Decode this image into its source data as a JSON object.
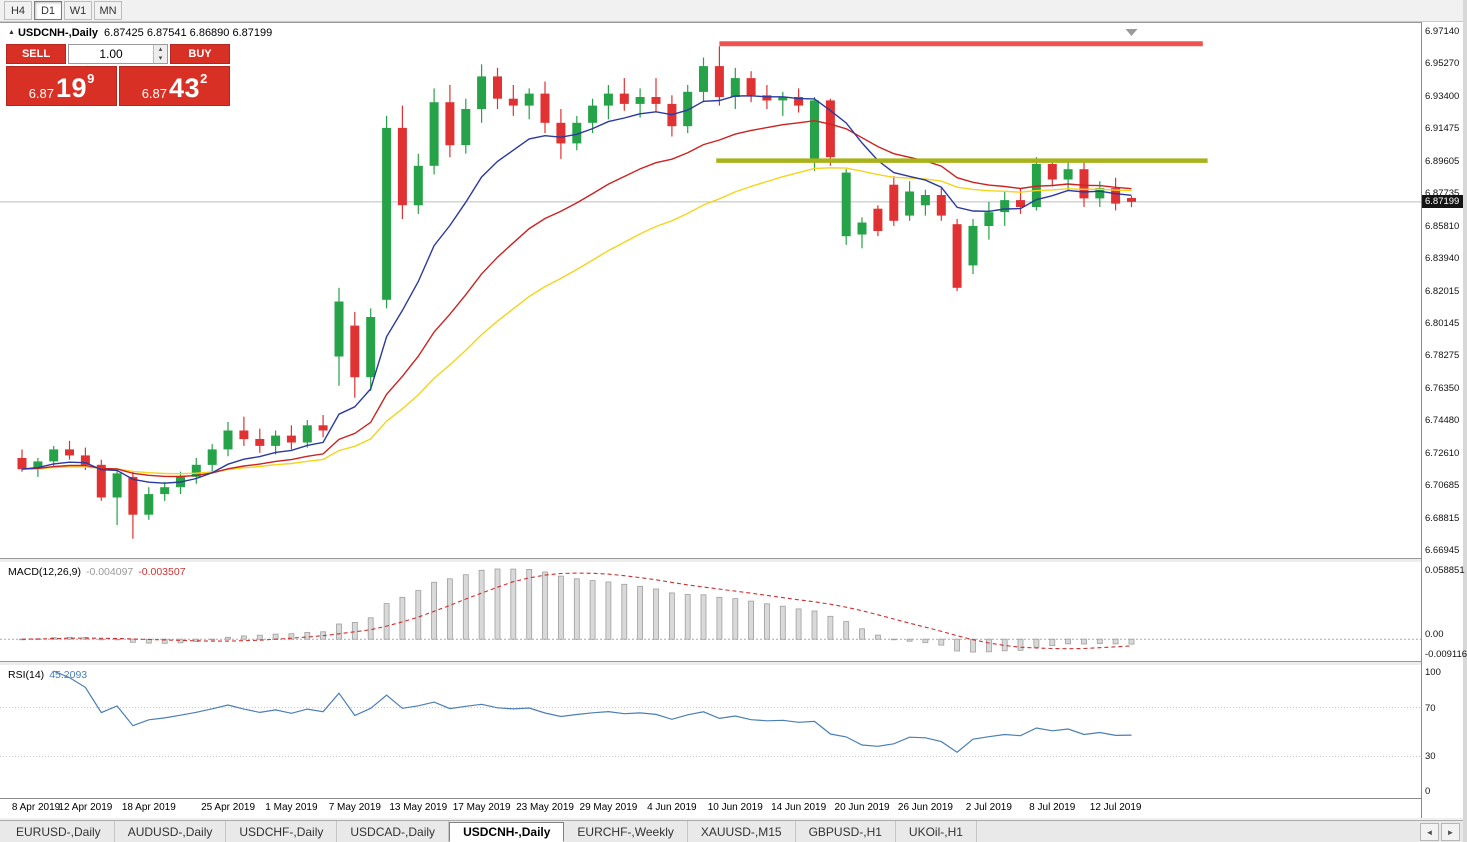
{
  "toolbar": {
    "timeframes": [
      "H4",
      "D1",
      "W1",
      "MN"
    ],
    "active": "D1"
  },
  "icons": {
    "expand_marker": "▲",
    "volume_up": "▴",
    "volume_down": "▾",
    "tab_scroll_left": "◄",
    "tab_scroll_right": "►"
  },
  "chart": {
    "symbol_label": "USDCNH-,Daily",
    "ohlc_text": "6.87425 6.87541 6.86890 6.87199"
  },
  "trade_panel": {
    "sell_label": "SELL",
    "buy_label": "BUY",
    "volume": "1.00",
    "sell_price_main": "6.87",
    "sell_price_big": "19",
    "sell_price_sup": "9",
    "buy_price_main": "6.87",
    "buy_price_big": "43",
    "buy_price_sup": "2"
  },
  "price_scale": {
    "labels": [
      "6.97140",
      "6.95270",
      "6.93400",
      "6.91475",
      "6.89605",
      "6.87735",
      "6.85810",
      "6.83940",
      "6.82015",
      "6.80145",
      "6.78275",
      "6.76350",
      "6.74480",
      "6.72610",
      "6.70685",
      "6.68815",
      "6.66945"
    ],
    "current": "6.87199"
  },
  "macd_panel": {
    "label": "MACD(12,26,9)",
    "value_macd": "-0.004097",
    "value_signal": "-0.003507",
    "scale_top": "0.058851",
    "scale_zero": "0.00",
    "scale_bottom": "-0.009116"
  },
  "rsi_panel": {
    "label": "RSI(14)",
    "value": "45.2093",
    "scale_labels": [
      "100",
      "70",
      "30",
      "0"
    ],
    "scale_values": [
      100,
      70,
      30,
      0
    ],
    "levels": [
      70,
      30
    ]
  },
  "tabs": {
    "items": [
      "EURUSD-,Daily",
      "AUDUSD-,Daily",
      "USDCHF-,Daily",
      "USDCAD-,Daily",
      "USDCNH-,Daily",
      "EURCHF-,Weekly",
      "XAUUSD-,M15",
      "GBPUSD-,H1",
      "UKOil-,H1"
    ],
    "active_index": 4
  },
  "chart_data": [
    {
      "type": "candlestick",
      "symbol": "USDCNH",
      "timeframe": "Daily",
      "ylim": [
        6.66945,
        6.9714
      ],
      "current_price": 6.87199,
      "colors": {
        "up": "#26a248",
        "down": "#e03232",
        "current_price_line": "#bdbdbd"
      },
      "candles": [
        [
          6.723,
          6.728,
          6.715,
          6.7165
        ],
        [
          6.7165,
          6.723,
          6.712,
          6.721
        ],
        [
          6.721,
          6.73,
          6.718,
          6.728
        ],
        [
          6.728,
          6.733,
          6.722,
          6.7245
        ],
        [
          6.7245,
          6.729,
          6.716,
          6.719
        ],
        [
          6.719,
          6.722,
          6.698,
          6.7
        ],
        [
          6.7,
          6.716,
          6.684,
          6.714
        ],
        [
          6.712,
          6.715,
          6.676,
          6.69
        ],
        [
          6.69,
          6.706,
          6.687,
          6.702
        ],
        [
          6.702,
          6.709,
          6.698,
          6.706
        ],
        [
          6.706,
          6.715,
          6.702,
          6.712
        ],
        [
          6.712,
          6.723,
          6.708,
          6.719
        ],
        [
          6.719,
          6.731,
          6.715,
          6.728
        ],
        [
          6.728,
          6.744,
          6.724,
          6.739
        ],
        [
          6.739,
          6.747,
          6.73,
          6.734
        ],
        [
          6.734,
          6.74,
          6.726,
          6.73
        ],
        [
          6.73,
          6.739,
          6.725,
          6.736
        ],
        [
          6.736,
          6.742,
          6.728,
          6.732
        ],
        [
          6.732,
          6.745,
          6.729,
          6.742
        ],
        [
          6.742,
          6.748,
          6.735,
          6.739
        ],
        [
          6.782,
          6.822,
          6.765,
          6.814
        ],
        [
          6.8,
          6.808,
          6.758,
          6.77
        ],
        [
          6.77,
          6.81,
          6.762,
          6.805
        ],
        [
          6.815,
          6.922,
          6.81,
          6.915
        ],
        [
          6.915,
          6.928,
          6.862,
          6.87
        ],
        [
          6.87,
          6.9,
          6.865,
          6.893
        ],
        [
          6.893,
          6.938,
          6.888,
          6.93
        ],
        [
          6.93,
          6.94,
          6.898,
          6.905
        ],
        [
          6.905,
          6.932,
          6.9,
          6.926
        ],
        [
          6.926,
          6.952,
          6.918,
          6.945
        ],
        [
          6.945,
          6.95,
          6.926,
          6.932
        ],
        [
          6.932,
          6.94,
          6.922,
          6.928
        ],
        [
          6.928,
          6.938,
          6.92,
          6.935
        ],
        [
          6.935,
          6.942,
          6.912,
          6.918
        ],
        [
          6.918,
          6.926,
          6.897,
          6.906
        ],
        [
          6.906,
          6.922,
          6.902,
          6.918
        ],
        [
          6.918,
          6.932,
          6.912,
          6.928
        ],
        [
          6.928,
          6.94,
          6.92,
          6.935
        ],
        [
          6.935,
          6.944,
          6.925,
          6.929
        ],
        [
          6.929,
          6.938,
          6.921,
          6.933
        ],
        [
          6.933,
          6.944,
          6.924,
          6.929
        ],
        [
          6.929,
          6.934,
          6.91,
          6.916
        ],
        [
          6.916,
          6.94,
          6.912,
          6.936
        ],
        [
          6.936,
          6.956,
          6.93,
          6.951
        ],
        [
          6.951,
          6.9625,
          6.928,
          6.933
        ],
        [
          6.933,
          6.95,
          6.926,
          6.944
        ],
        [
          6.944,
          6.948,
          6.93,
          6.934
        ],
        [
          6.934,
          6.94,
          6.926,
          6.931
        ],
        [
          6.931,
          6.936,
          6.922,
          6.933
        ],
        [
          6.933,
          6.938,
          6.924,
          6.928
        ],
        [
          6.896,
          6.933,
          6.89,
          6.931
        ],
        [
          6.931,
          6.932,
          6.893,
          6.898
        ],
        [
          6.852,
          6.891,
          6.847,
          6.889
        ],
        [
          6.853,
          6.863,
          6.845,
          6.86
        ],
        [
          6.868,
          6.87,
          6.852,
          6.855
        ],
        [
          6.882,
          6.887,
          6.858,
          6.861
        ],
        [
          6.864,
          6.884,
          6.861,
          6.878
        ],
        [
          6.87,
          6.879,
          6.864,
          6.876
        ],
        [
          6.876,
          6.88,
          6.861,
          6.864
        ],
        [
          6.859,
          6.862,
          6.8201,
          6.822
        ],
        [
          6.835,
          6.862,
          6.83,
          6.858
        ],
        [
          6.858,
          6.872,
          6.85,
          6.866
        ],
        [
          6.866,
          6.878,
          6.858,
          6.873
        ],
        [
          6.873,
          6.88,
          6.865,
          6.869
        ],
        [
          6.869,
          6.898,
          6.867,
          6.894
        ],
        [
          6.894,
          6.897,
          6.881,
          6.885
        ],
        [
          6.885,
          6.895,
          6.878,
          6.891
        ],
        [
          6.891,
          6.896,
          6.869,
          6.874
        ],
        [
          6.874,
          6.884,
          6.869,
          6.88
        ],
        [
          6.88,
          6.886,
          6.867,
          6.871
        ],
        [
          6.87425,
          6.87541,
          6.8689,
          6.87199
        ]
      ],
      "x_labels": [
        {
          "index": 0,
          "label": "8 Apr 2019"
        },
        {
          "index": 4,
          "label": "12 Apr 2019"
        },
        {
          "index": 8,
          "label": "18 Apr 2019"
        },
        {
          "index": 13,
          "label": "25 Apr 2019"
        },
        {
          "index": 17,
          "label": "1 May 2019"
        },
        {
          "index": 21,
          "label": "7 May 2019"
        },
        {
          "index": 25,
          "label": "13 May 2019"
        },
        {
          "index": 29,
          "label": "17 May 2019"
        },
        {
          "index": 33,
          "label": "23 May 2019"
        },
        {
          "index": 37,
          "label": "29 May 2019"
        },
        {
          "index": 41,
          "label": "4 Jun 2019"
        },
        {
          "index": 45,
          "label": "10 Jun 2019"
        },
        {
          "index": 49,
          "label": "14 Jun 2019"
        },
        {
          "index": 53,
          "label": "20 Jun 2019"
        },
        {
          "index": 57,
          "label": "26 Jun 2019"
        },
        {
          "index": 61,
          "label": "2 Jul 2019"
        },
        {
          "index": 65,
          "label": "8 Jul 2019"
        },
        {
          "index": 69,
          "label": "12 Jul 2019"
        }
      ],
      "overlays": {
        "moving_averages": [
          {
            "name": "slow-ma",
            "period": 34,
            "color": "#f5d41c",
            "width": 1.4
          },
          {
            "name": "medium-ma",
            "period": 20,
            "color": "#cc2222",
            "width": 1.4
          },
          {
            "name": "fast-ma",
            "period": 9,
            "color": "#2b3a9e",
            "width": 1.4
          }
        ],
        "lines": [
          {
            "name": "resistance-line",
            "price": 6.964,
            "from_index": 44,
            "to_index": 74.5,
            "color": "#ef5350",
            "width": 5
          },
          {
            "name": "support-line",
            "price": 6.896,
            "from_index": 43.8,
            "to_index": 74.8,
            "color": "#a8b319",
            "width": 4.5
          }
        ]
      }
    },
    {
      "type": "bar",
      "name": "MACD(12,26,9)",
      "fast_period": 12,
      "slow_period": 26,
      "signal_period": 9,
      "current_macd": -0.004097,
      "current_signal": -0.003507,
      "histogram_color": "#d9d9d9",
      "histogram_border": "#9e9e9e",
      "signal_color": "#d03030",
      "scale": {
        "top": 0.058851,
        "zero": 0.0,
        "bottom": -0.009116
      }
    },
    {
      "type": "line",
      "name": "RSI(14)",
      "period": 14,
      "current": 45.2093,
      "range": [
        0,
        100
      ],
      "levels": [
        70,
        30
      ],
      "line_color": "#4a7fb5"
    }
  ]
}
